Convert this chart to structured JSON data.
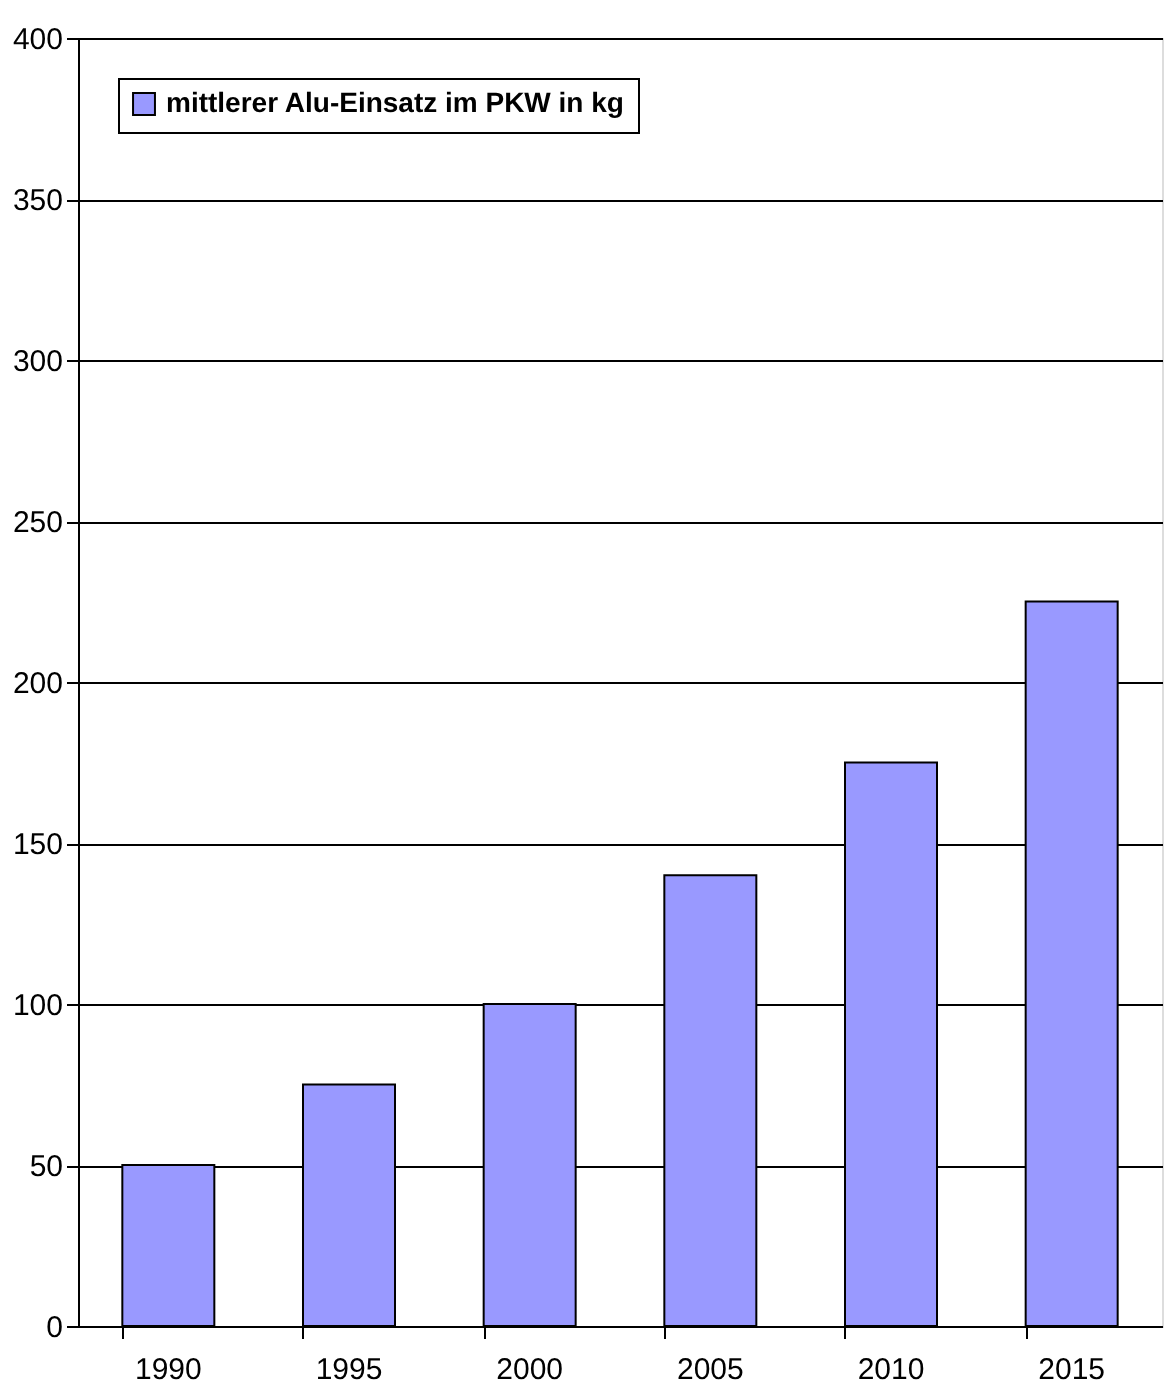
{
  "chart_data": {
    "type": "bar",
    "categories": [
      "1990",
      "1995",
      "2000",
      "2005",
      "2010",
      "2015"
    ],
    "series": [
      {
        "name": "mittlerer Alu-Einsatz im PKW in kg",
        "color": "#9999ff",
        "values": [
          50,
          75,
          100,
          140,
          175,
          225
        ]
      }
    ],
    "ylim": [
      0,
      400
    ],
    "yticks": [
      0,
      50,
      100,
      150,
      200,
      250,
      300,
      350,
      400
    ],
    "grid": "y",
    "legend": "top left"
  }
}
